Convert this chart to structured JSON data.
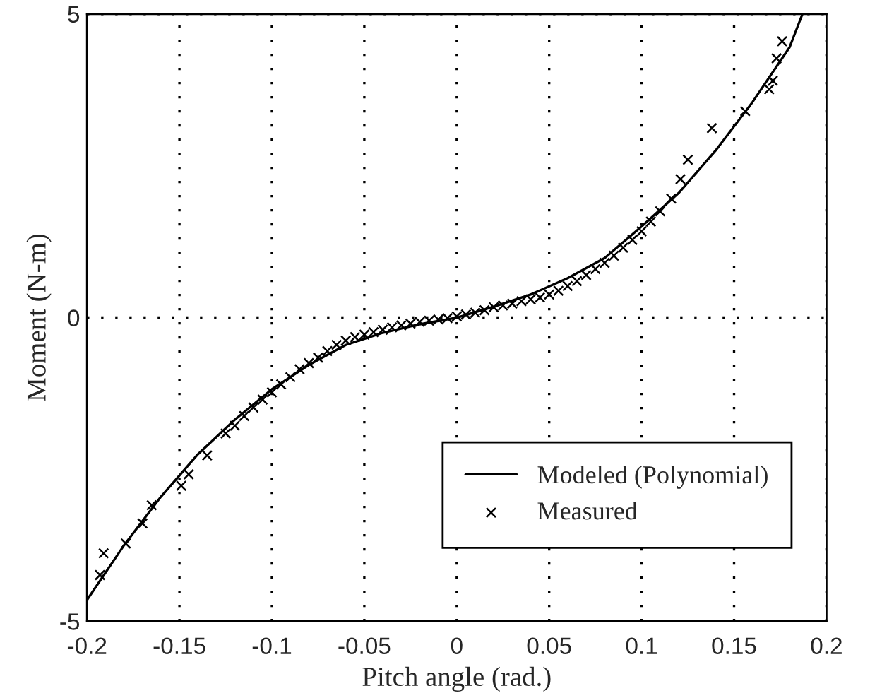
{
  "chart_data": {
    "type": "line",
    "xlabel": "Pitch angle (rad.)",
    "ylabel": "Moment (N-m)",
    "xlim": [
      -0.2,
      0.2
    ],
    "ylim": [
      -5,
      5
    ],
    "xticks": [
      -0.2,
      -0.15,
      -0.1,
      -0.05,
      0,
      0.05,
      0.1,
      0.15,
      0.2
    ],
    "yticks": [
      -5,
      0,
      5
    ],
    "grid": true,
    "legend": "bottom right",
    "series": [
      {
        "name": "Modeled (Polynomial)",
        "color": "#000000",
        "marker": "none",
        "line_style": "solid",
        "x": [
          -0.2,
          -0.18,
          -0.16,
          -0.14,
          -0.12,
          -0.1,
          -0.08,
          -0.06,
          -0.04,
          -0.02,
          0,
          0.02,
          0.04,
          0.06,
          0.08,
          0.1,
          0.12,
          0.14,
          0.16,
          0.18,
          0.187
        ],
        "values": [
          -4.65,
          -3.75,
          -2.95,
          -2.25,
          -1.68,
          -1.18,
          -0.78,
          -0.45,
          -0.25,
          -0.11,
          0,
          0.18,
          0.38,
          0.65,
          0.98,
          1.5,
          2.05,
          2.75,
          3.55,
          4.45,
          5.0
        ]
      },
      {
        "name": "Measured",
        "type": "scatter",
        "color": "#000000",
        "marker": "cross",
        "x": [
          -0.193,
          -0.191,
          -0.179,
          -0.17,
          -0.165,
          -0.149,
          -0.145,
          -0.135,
          -0.125,
          -0.12,
          -0.115,
          -0.11,
          -0.105,
          -0.1,
          -0.095,
          -0.09,
          -0.085,
          -0.08,
          -0.075,
          -0.07,
          -0.065,
          -0.06,
          -0.055,
          -0.05,
          -0.045,
          -0.04,
          -0.035,
          -0.03,
          -0.025,
          -0.02,
          -0.015,
          -0.01,
          -0.005,
          0,
          0.005,
          0.01,
          0.015,
          0.02,
          0.025,
          0.03,
          0.035,
          0.04,
          0.045,
          0.05,
          0.055,
          0.06,
          0.065,
          0.07,
          0.075,
          0.08,
          0.085,
          0.09,
          0.095,
          0.1,
          0.105,
          0.11,
          0.116,
          0.121,
          0.125,
          0.138,
          0.156,
          0.169,
          0.171,
          0.173,
          0.176
        ],
        "values": [
          -4.24,
          -3.88,
          -3.72,
          -3.39,
          -3.09,
          -2.77,
          -2.58,
          -2.27,
          -1.91,
          -1.78,
          -1.62,
          -1.48,
          -1.35,
          -1.23,
          -1.1,
          -0.98,
          -0.85,
          -0.75,
          -0.66,
          -0.55,
          -0.45,
          -0.38,
          -0.32,
          -0.28,
          -0.24,
          -0.2,
          -0.16,
          -0.13,
          -0.1,
          -0.07,
          -0.05,
          -0.03,
          -0.01,
          0.02,
          0.05,
          0.08,
          0.12,
          0.17,
          0.2,
          0.23,
          0.27,
          0.3,
          0.33,
          0.38,
          0.44,
          0.52,
          0.6,
          0.7,
          0.8,
          0.9,
          1.02,
          1.15,
          1.28,
          1.42,
          1.58,
          1.75,
          1.96,
          2.28,
          2.6,
          3.12,
          3.4,
          3.76,
          3.9,
          4.27,
          4.55
        ]
      }
    ]
  }
}
